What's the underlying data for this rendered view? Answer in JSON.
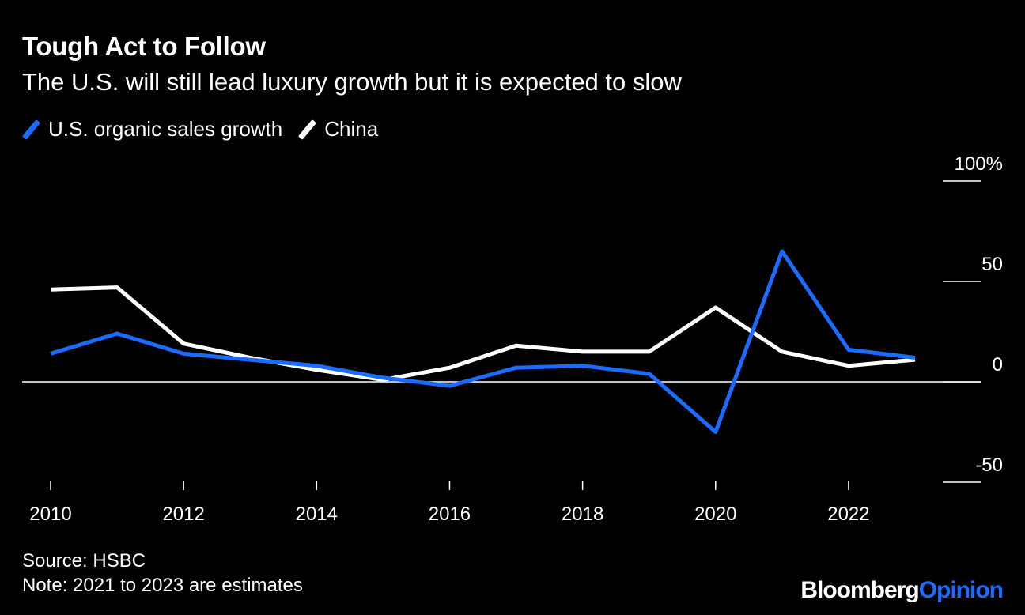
{
  "title": "Tough Act to Follow",
  "subtitle": "The U.S. will still lead luxury growth but it is expected to slow",
  "colors": {
    "background": "#000000",
    "us": "#1a6bff",
    "china": "#ffffff",
    "text": "#ffffff"
  },
  "chart_data": {
    "type": "line",
    "x": [
      2010,
      2011,
      2012,
      2013,
      2014,
      2015,
      2016,
      2017,
      2018,
      2019,
      2020,
      2021,
      2022,
      2023
    ],
    "series": [
      {
        "name": "U.S. organic sales growth",
        "color": "#1a6bff",
        "values": [
          14,
          24,
          14,
          11,
          8,
          2,
          -2,
          7,
          8,
          4,
          -25,
          65,
          16,
          12
        ]
      },
      {
        "name": "China",
        "color": "#ffffff",
        "values": [
          46,
          47,
          19,
          12,
          6,
          1,
          7,
          18,
          15,
          15,
          37,
          15,
          8,
          11
        ]
      }
    ],
    "x_ticks": [
      2010,
      2012,
      2014,
      2016,
      2018,
      2020,
      2022
    ],
    "x_tick_labels": [
      "2010",
      "2012",
      "2014",
      "2016",
      "2018",
      "2020",
      "2022"
    ],
    "y_ticks": [
      100,
      50,
      0,
      -50
    ],
    "y_tick_labels": [
      "100%",
      "50",
      "0",
      "-50"
    ],
    "ylim": [
      -50,
      100
    ],
    "xlim": [
      2010,
      2023
    ],
    "y_axis_position": "right",
    "zero_line": true,
    "grid": false,
    "legend_position": "top-left"
  },
  "footer": {
    "source": "Source: HSBC",
    "note": "Note: 2021 to 2023 are estimates"
  },
  "brand": {
    "part1": "Bloomberg",
    "part2": "Opinion"
  }
}
